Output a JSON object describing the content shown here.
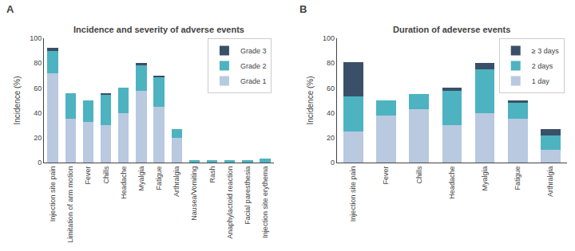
{
  "chart_data": [
    {
      "type": "bar",
      "title": "Incidence and severity of adverse events",
      "annotations": [
        "A"
      ],
      "categories": [
        "Injection site pain",
        "Limitation of arm motion",
        "Fever",
        "Chills",
        "Headache",
        "Myalgia",
        "Fatigue",
        "Arthralgia",
        "Nausea/Vomiting",
        "Rash",
        "Anaphylactoid reaction",
        "Facial paresthesia",
        "Injection site erythema"
      ],
      "series": [
        {
          "name": "Grade 1",
          "color": "#b8c9e0",
          "values": [
            72,
            35,
            33,
            30,
            40,
            58,
            45,
            20,
            0,
            0,
            0,
            0,
            0
          ]
        },
        {
          "name": "Grade 2",
          "color": "#4db3c0",
          "values": [
            18,
            21,
            17,
            25,
            20,
            20,
            24,
            7,
            2,
            2,
            2,
            2,
            3
          ]
        },
        {
          "name": "Grade 3",
          "color": "#3a5068",
          "values": [
            2,
            0,
            0,
            1,
            0,
            2,
            1,
            0,
            0,
            0,
            0,
            0,
            0
          ]
        }
      ],
      "ylabel": "Incidence (%)",
      "ylim": [
        0,
        100
      ],
      "yticks": [
        0,
        20,
        40,
        60,
        80,
        100
      ],
      "stacked": true,
      "legend": "upper right",
      "grid": false
    },
    {
      "type": "bar",
      "title": "Duration of adeverse events",
      "annotations": [
        "B"
      ],
      "categories": [
        "Injection site pain",
        "Fever",
        "Chills",
        "Headache",
        "Myalgia",
        "Fatigue",
        "Arthralgia"
      ],
      "series": [
        {
          "name": "1 day",
          "color": "#b8c9e0",
          "values": [
            25,
            38,
            43,
            30,
            40,
            35,
            10
          ]
        },
        {
          "name": "2 days",
          "color": "#4db3c0",
          "values": [
            28,
            12,
            12,
            28,
            35,
            13,
            12
          ]
        },
        {
          "name": "≥ 3 days",
          "color": "#3a5068",
          "values": [
            28,
            0,
            0,
            2,
            5,
            2,
            5
          ]
        }
      ],
      "ylabel": "Incidence (%)",
      "ylim": [
        0,
        100
      ],
      "yticks": [
        0,
        20,
        40,
        60,
        80,
        100
      ],
      "stacked": true,
      "legend": "upper right",
      "grid": false
    }
  ]
}
